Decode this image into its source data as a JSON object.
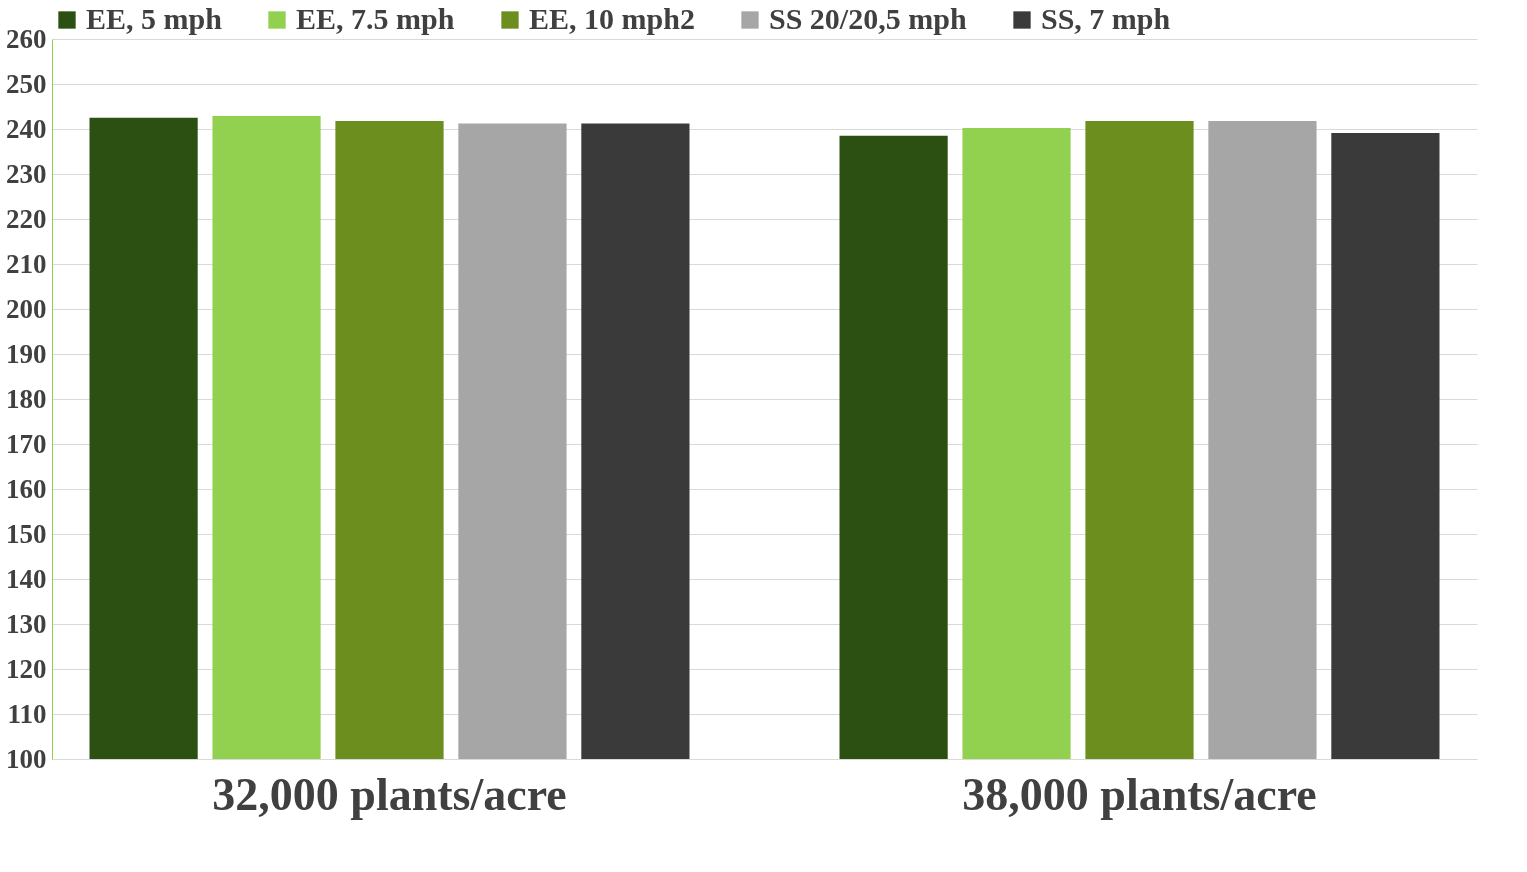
{
  "chart_data": {
    "type": "bar",
    "categories": [
      "32,000 plants/acre",
      "38,000 plants/acre"
    ],
    "series": [
      {
        "name": "EE, 5 mph",
        "color": "#2b5012",
        "values": [
          242.5,
          238.5
        ]
      },
      {
        "name": "EE, 7.5 mph",
        "color": "#92d050",
        "values": [
          242.9,
          240.2
        ]
      },
      {
        "name": "EE, 10 mph2",
        "color": "#6b8e1e",
        "values": [
          241.8,
          241.8
        ]
      },
      {
        "name": "SS 20/20,5 mph",
        "color": "#a6a6a6",
        "values": [
          241.2,
          241.8
        ]
      },
      {
        "name": "SS, 7 mph",
        "color": "#3a3a3a",
        "values": [
          241.2,
          239.1
        ]
      }
    ],
    "ylim": [
      100,
      260
    ],
    "yticks": [
      100,
      110,
      120,
      130,
      140,
      150,
      160,
      170,
      180,
      190,
      200,
      210,
      220,
      230,
      240,
      250,
      260
    ],
    "grid": "y",
    "legend": "top"
  }
}
